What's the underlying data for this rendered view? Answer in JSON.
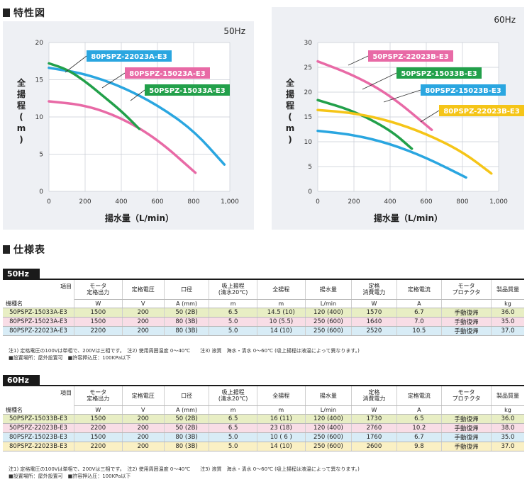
{
  "sections": {
    "chart_title": "特性図",
    "spec_title": "仕様表"
  },
  "chart_data": [
    {
      "type": "line",
      "freq_label": "50Hz",
      "ylabel": "全揚程(m)",
      "xlabel": "揚水量（L/min）",
      "xlim": [
        0,
        1000
      ],
      "ylim": [
        0,
        20
      ],
      "x_ticks": [
        "0",
        "200",
        "400",
        "600",
        "800",
        "1,000"
      ],
      "y_ticks": [
        "0",
        "5",
        "10",
        "15",
        "20"
      ],
      "series": [
        {
          "name": "80PSPZ-22023A-E3",
          "color": "#2aa6e0",
          "x": [
            0,
            200,
            400,
            600,
            800,
            970
          ],
          "y": [
            16.6,
            15.8,
            14.1,
            11.6,
            8.2,
            3.6
          ]
        },
        {
          "name": "80PSPZ-15023A-E3",
          "color": "#e86aa6",
          "x": [
            0,
            200,
            400,
            600,
            810
          ],
          "y": [
            12.1,
            11.6,
            9.9,
            7.0,
            2.5
          ]
        },
        {
          "name": "50PSPZ-15033A-E3",
          "color": "#22a04a",
          "x": [
            0,
            100,
            200,
            300,
            400,
            500
          ],
          "y": [
            17.2,
            16.4,
            14.8,
            12.8,
            10.8,
            8.4
          ]
        }
      ]
    },
    {
      "type": "line",
      "freq_label": "60Hz",
      "ylabel": "全揚程(m)",
      "xlabel": "揚水量（L/min）",
      "xlim": [
        0,
        1000
      ],
      "ylim": [
        0,
        30
      ],
      "x_ticks": [
        "0",
        "200",
        "400",
        "600",
        "800",
        "1,000"
      ],
      "y_ticks": [
        "0",
        "5",
        "10",
        "15",
        "20",
        "25",
        "30"
      ],
      "series": [
        {
          "name": "50PSPZ-22023B-E3",
          "color": "#e86aa6",
          "x": [
            0,
            200,
            400,
            630
          ],
          "y": [
            26.2,
            23.4,
            19.4,
            12.4
          ]
        },
        {
          "name": "50PSPZ-15033B-E3",
          "color": "#22a04a",
          "x": [
            0,
            200,
            400,
            520
          ],
          "y": [
            18.4,
            16.2,
            12.4,
            8.6
          ]
        },
        {
          "name": "80PSPZ-15023B-E3",
          "color": "#2aa6e0",
          "x": [
            0,
            200,
            400,
            600,
            820
          ],
          "y": [
            12.2,
            11.4,
            9.6,
            6.8,
            2.8
          ]
        },
        {
          "name": "80PSPZ-22023B-E3",
          "color": "#f5c518",
          "x": [
            0,
            200,
            400,
            600,
            800,
            960
          ],
          "y": [
            16.4,
            15.8,
            14.2,
            11.6,
            8.0,
            3.6
          ]
        }
      ]
    }
  ],
  "table_header": {
    "corner_top": "項目",
    "corner_bottom": "機種名",
    "cols": [
      "モータ\n定格出力",
      "定格電圧",
      "口径",
      "吸上揚程\n(清水20℃)",
      "全揚程",
      "揚水量",
      "定格\n消費電力",
      "定格電流",
      "モータ\nプロテクタ",
      "製品質量"
    ],
    "units": [
      "W",
      "V",
      "A (mm)",
      "m",
      "m",
      "L/min",
      "W",
      "A",
      "",
      "kg"
    ]
  },
  "spec_50hz": {
    "label": "50Hz",
    "rows": [
      {
        "model": "50PSPZ-15033A-E3",
        "bg": "#e8eec4",
        "cells": [
          "1500",
          "200",
          "50 (2B)",
          "6.5",
          "14.5 (10)",
          "120 (400)",
          "1570",
          "6.7",
          "手動復帰",
          "36.0"
        ]
      },
      {
        "model": "80PSPZ-15023A-E3",
        "bg": "#f8dde6",
        "cells": [
          "1500",
          "200",
          "80 (3B)",
          "5.0",
          "10 (5.5)",
          "250 (600)",
          "1640",
          "7.0",
          "手動復帰",
          "35.0"
        ]
      },
      {
        "model": "80PSPZ-22023A-E3",
        "bg": "#d8ecf6",
        "cells": [
          "2200",
          "200",
          "80 (3B)",
          "5.0",
          "14 (10)",
          "250 (600)",
          "2520",
          "10.5",
          "手動復帰",
          "37.0"
        ]
      }
    ],
    "note1": "注1) 定格電圧の100Vは単相で、200Vは三相です。　注2) 使用周囲温度 0～40℃　　注3) 液質　海水・清水 0～60℃ (吸上揚程は液温によって異なります。)",
    "note2": "■設置場所：屋外設置可　■許容押込圧：100KPa以下"
  },
  "spec_60hz": {
    "label": "60Hz",
    "rows": [
      {
        "model": "50PSPZ-15033B-E3",
        "bg": "#e8eec4",
        "cells": [
          "1500",
          "200",
          "50 (2B)",
          "6.5",
          "16 (11)",
          "120 (400)",
          "1730",
          "6.5",
          "手動復帰",
          "36.0"
        ]
      },
      {
        "model": "50PSPZ-22023B-E3",
        "bg": "#f8dde6",
        "cells": [
          "2200",
          "200",
          "50 (2B)",
          "6.5",
          "23 (18)",
          "120 (400)",
          "2760",
          "10.2",
          "手動復帰",
          "38.0"
        ]
      },
      {
        "model": "80PSPZ-15023B-E3",
        "bg": "#d8ecf6",
        "cells": [
          "1500",
          "200",
          "80 (3B)",
          "5.0",
          "10 ( 6 )",
          "250 (600)",
          "1760",
          "6.7",
          "手動復帰",
          "35.0"
        ]
      },
      {
        "model": "80PSPZ-22023B-E3",
        "bg": "#faf0c4",
        "cells": [
          "2200",
          "200",
          "80 (3B)",
          "5.0",
          "14 (10)",
          "250 (600)",
          "2600",
          "9.8",
          "手動復帰",
          "37.0"
        ]
      }
    ],
    "note1": "注1) 定格電圧の100Vは単相で、200Vは三相です。　注2) 使用周囲温度 0～40℃　　注3) 液質　海水・清水 0～60℃ (吸上揚程は液温によって異なります。)",
    "note2": "■設置場所：屋外設置可　■許容押込圧：100KPa以下"
  }
}
